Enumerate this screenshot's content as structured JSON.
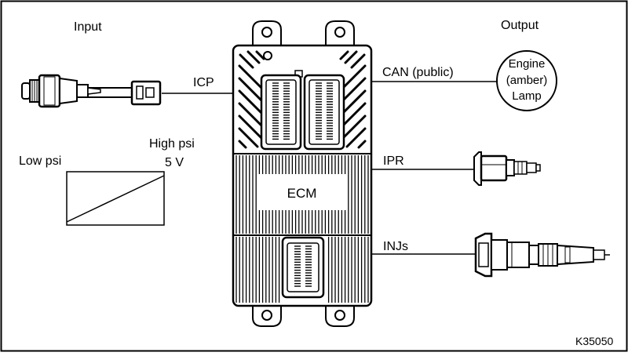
{
  "labels": {
    "input": "Input",
    "output": "Output",
    "icp": "ICP",
    "can": "CAN (public)",
    "ipr": "IPR",
    "injs": "INJs",
    "ecm": "ECM",
    "low_psi": "Low psi",
    "high_psi": "High psi",
    "volts": "5 V",
    "lamp_line1": "Engine",
    "lamp_line2": "(amber)",
    "lamp_line3": "Lamp",
    "figure_code": "K35050"
  },
  "colors": {
    "stroke": "#000000",
    "background": "#ffffff"
  }
}
